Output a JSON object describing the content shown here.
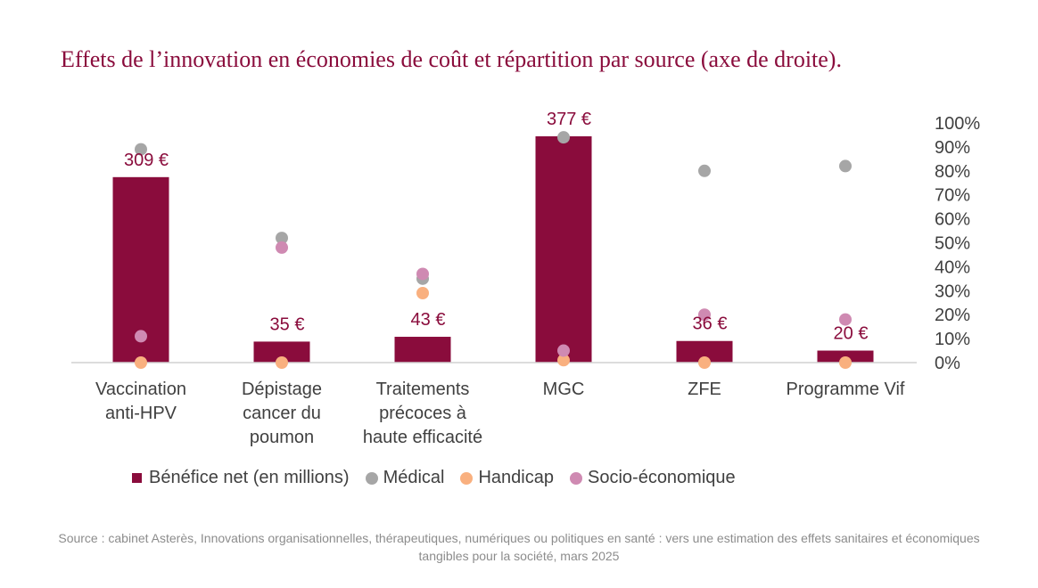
{
  "title": "Effets de l’innovation en économies de coût et répartition par source (axe de droite).",
  "source": "Source : cabinet Asterès, Innovations organisationnelles, thérapeutiques, numériques ou politiques en santé : vers une estimation des effets sanitaires et économiques tangibles pour la société, mars 2025",
  "colors": {
    "bar": "#8a0c3c",
    "medical": "#a6a6a6",
    "handicap": "#f9b07f",
    "socio": "#cf8ab2",
    "title": "#8a0c3c",
    "text": "#404040"
  },
  "chart_data": {
    "type": "bar",
    "title": "Effets de l’innovation en économies de coût et répartition par source (axe de droite).",
    "categories": [
      "Vaccination anti-HPV",
      "Dépistage cancer du poumon",
      "Traitements précoces à haute efficacité",
      "MGC",
      "ZFE",
      "Programme Vif"
    ],
    "category_lines": [
      [
        "Vaccination",
        "anti-HPV"
      ],
      [
        "Dépistage",
        "cancer du",
        "poumon"
      ],
      [
        "Traitements",
        "précoces à",
        "haute efficacité"
      ],
      [
        "MGC"
      ],
      [
        "ZFE"
      ],
      [
        "Programme Vif"
      ]
    ],
    "bar_series": {
      "name": "Bénéfice net (en millions)",
      "values": [
        309,
        35,
        43,
        377,
        36,
        20
      ],
      "labels": [
        "309 €",
        "35 €",
        "43 €",
        "377 €",
        "36 €",
        "20 €"
      ],
      "axis": "left",
      "ylim": [
        0,
        400
      ]
    },
    "dot_series": [
      {
        "name": "Médical",
        "key": "medical",
        "values": [
          89,
          52,
          35,
          94,
          80,
          82
        ]
      },
      {
        "name": "Handicap",
        "key": "handicap",
        "values": [
          0,
          0,
          29,
          1,
          0,
          0
        ]
      },
      {
        "name": "Socio-économique",
        "key": "socio",
        "values": [
          11,
          48,
          37,
          5,
          20,
          18
        ]
      }
    ],
    "right_axis": {
      "ylim": [
        0,
        100
      ],
      "ticks": [
        "0%",
        "10%",
        "20%",
        "30%",
        "40%",
        "50%",
        "60%",
        "70%",
        "80%",
        "90%",
        "100%"
      ]
    },
    "legend": [
      "Bénéfice net (en millions)",
      "Médical",
      "Handicap",
      "Socio-économique"
    ],
    "legend_position": "bottom"
  }
}
